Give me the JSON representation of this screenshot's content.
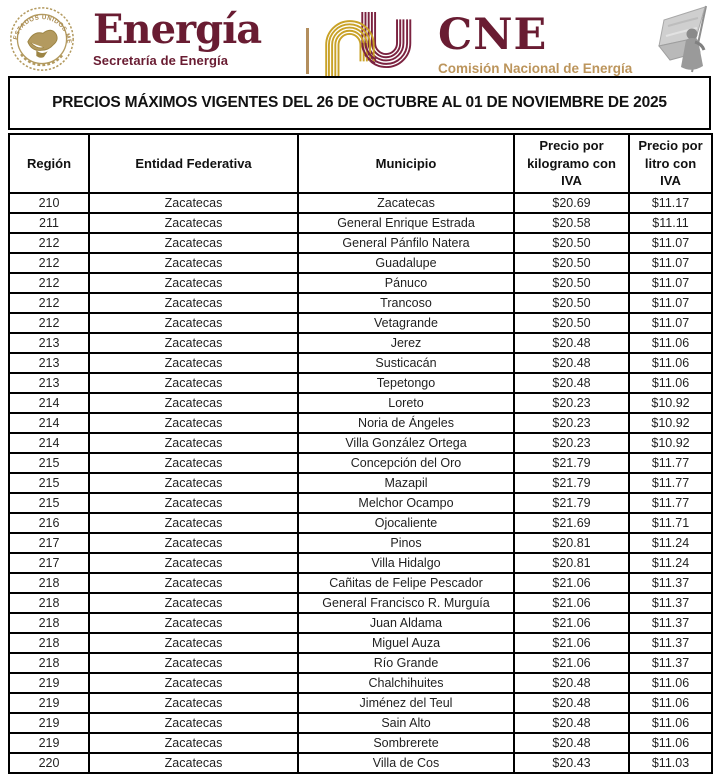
{
  "header": {
    "seal_text": "ESTADOS UNIDOS MEXICANOS",
    "energia_logo": {
      "wordmark": "Energía",
      "subtitle": "Secretaría de Energía"
    },
    "cne_logo": {
      "acronym": "CNE",
      "subtitle": "Comisión Nacional de Energía"
    }
  },
  "title_banner": {
    "text": "PRECIOS MÁXIMOS VIGENTES DEL 26 DE OCTUBRE AL 01 DE NOVIEMBRE DE 2025"
  },
  "table": {
    "columns": [
      "Región",
      "Entidad Federativa",
      "Municipio",
      "Precio por kilogramo con IVA",
      "Precio por litro con IVA"
    ],
    "rows": [
      [
        "210",
        "Zacatecas",
        "Zacatecas",
        "$20.69",
        "$11.17"
      ],
      [
        "211",
        "Zacatecas",
        "General Enrique Estrada",
        "$20.58",
        "$11.11"
      ],
      [
        "212",
        "Zacatecas",
        "General Pánfilo Natera",
        "$20.50",
        "$11.07"
      ],
      [
        "212",
        "Zacatecas",
        "Guadalupe",
        "$20.50",
        "$11.07"
      ],
      [
        "212",
        "Zacatecas",
        "Pánuco",
        "$20.50",
        "$11.07"
      ],
      [
        "212",
        "Zacatecas",
        "Trancoso",
        "$20.50",
        "$11.07"
      ],
      [
        "212",
        "Zacatecas",
        "Vetagrande",
        "$20.50",
        "$11.07"
      ],
      [
        "213",
        "Zacatecas",
        "Jerez",
        "$20.48",
        "$11.06"
      ],
      [
        "213",
        "Zacatecas",
        "Susticacán",
        "$20.48",
        "$11.06"
      ],
      [
        "213",
        "Zacatecas",
        "Tepetongo",
        "$20.48",
        "$11.06"
      ],
      [
        "214",
        "Zacatecas",
        "Loreto",
        "$20.23",
        "$10.92"
      ],
      [
        "214",
        "Zacatecas",
        "Noria de Ángeles",
        "$20.23",
        "$10.92"
      ],
      [
        "214",
        "Zacatecas",
        "Villa González Ortega",
        "$20.23",
        "$10.92"
      ],
      [
        "215",
        "Zacatecas",
        "Concepción del Oro",
        "$21.79",
        "$11.77"
      ],
      [
        "215",
        "Zacatecas",
        "Mazapil",
        "$21.79",
        "$11.77"
      ],
      [
        "215",
        "Zacatecas",
        "Melchor Ocampo",
        "$21.79",
        "$11.77"
      ],
      [
        "216",
        "Zacatecas",
        "Ojocaliente",
        "$21.69",
        "$11.71"
      ],
      [
        "217",
        "Zacatecas",
        "Pinos",
        "$20.81",
        "$11.24"
      ],
      [
        "217",
        "Zacatecas",
        "Villa Hidalgo",
        "$20.81",
        "$11.24"
      ],
      [
        "218",
        "Zacatecas",
        "Cañitas de Felipe Pescador",
        "$21.06",
        "$11.37"
      ],
      [
        "218",
        "Zacatecas",
        "General Francisco R. Murguía",
        "$21.06",
        "$11.37"
      ],
      [
        "218",
        "Zacatecas",
        "Juan Aldama",
        "$21.06",
        "$11.37"
      ],
      [
        "218",
        "Zacatecas",
        "Miguel Auza",
        "$21.06",
        "$11.37"
      ],
      [
        "218",
        "Zacatecas",
        "Río Grande",
        "$21.06",
        "$11.37"
      ],
      [
        "219",
        "Zacatecas",
        "Chalchihuites",
        "$20.48",
        "$11.06"
      ],
      [
        "219",
        "Zacatecas",
        "Jiménez del Teul",
        "$20.48",
        "$11.06"
      ],
      [
        "219",
        "Zacatecas",
        "Sain Alto",
        "$20.48",
        "$11.06"
      ],
      [
        "219",
        "Zacatecas",
        "Sombrerete",
        "$20.48",
        "$11.06"
      ],
      [
        "220",
        "Zacatecas",
        "Villa de Cos",
        "$20.43",
        "$11.03"
      ]
    ]
  },
  "colors": {
    "maroon": "#691C32",
    "gold": "#B38E5D",
    "table_text": "#1f1f1f",
    "border": "#000000"
  }
}
